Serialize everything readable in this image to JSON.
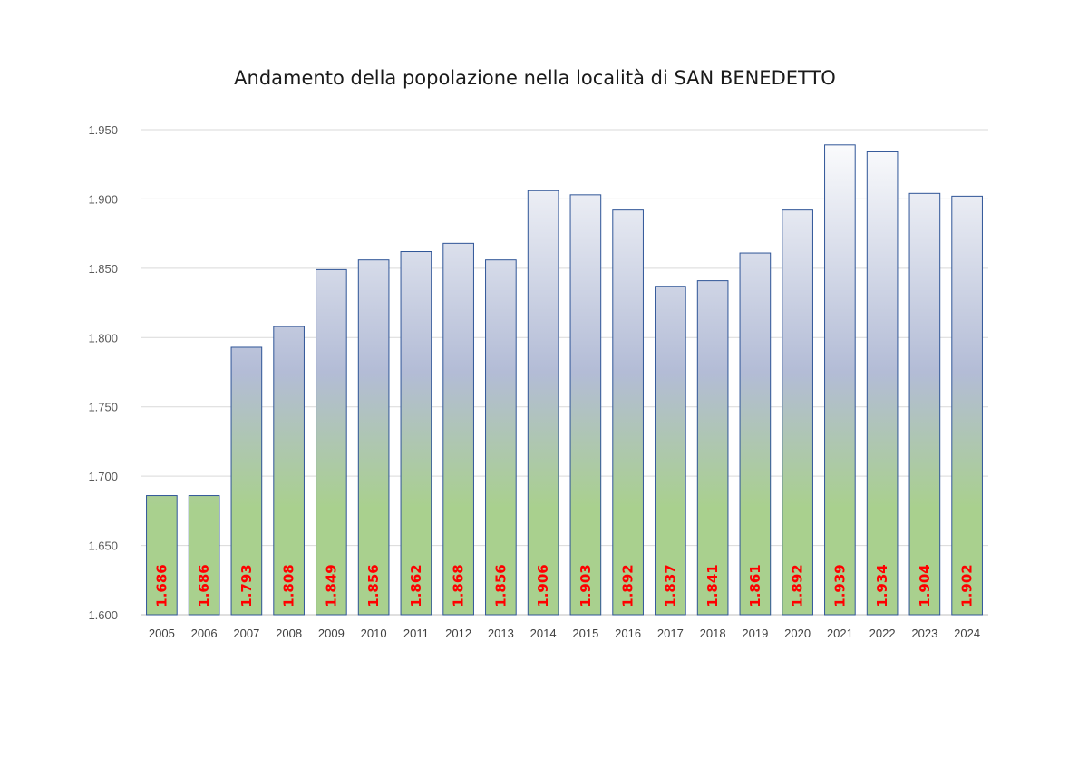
{
  "chart_data": {
    "type": "bar",
    "title": "Andamento della popolazione nella località di SAN BENEDETTO",
    "xlabel": "",
    "ylabel": "",
    "ylim": [
      1600,
      1950
    ],
    "y_ticks": [
      1600,
      1650,
      1700,
      1750,
      1800,
      1850,
      1900,
      1950
    ],
    "y_tick_labels": [
      "1.600",
      "1.650",
      "1.700",
      "1.750",
      "1.800",
      "1.850",
      "1.900",
      "1.950"
    ],
    "grid": true,
    "categories": [
      "2005",
      "2006",
      "2007",
      "2008",
      "2009",
      "2010",
      "2011",
      "2012",
      "2013",
      "2014",
      "2015",
      "2016",
      "2017",
      "2018",
      "2019",
      "2020",
      "2021",
      "2022",
      "2023",
      "2024"
    ],
    "values": [
      1686,
      1686,
      1793,
      1808,
      1849,
      1856,
      1862,
      1868,
      1856,
      1906,
      1903,
      1892,
      1837,
      1841,
      1861,
      1892,
      1939,
      1934,
      1904,
      1902
    ],
    "data_labels": [
      "1.686",
      "1.686",
      "1.793",
      "1.808",
      "1.849",
      "1.856",
      "1.862",
      "1.868",
      "1.856",
      "1.906",
      "1.903",
      "1.892",
      "1.837",
      "1.841",
      "1.861",
      "1.892",
      "1.939",
      "1.934",
      "1.904",
      "1.902"
    ],
    "colors": {
      "bar_top": "#ffffff",
      "bar_mid": "#b3bcd6",
      "bar_bottom": "#a9d08e",
      "bar_border": "#2f5597",
      "data_label": "#ff0000",
      "grid": "#d9d9d9"
    }
  }
}
